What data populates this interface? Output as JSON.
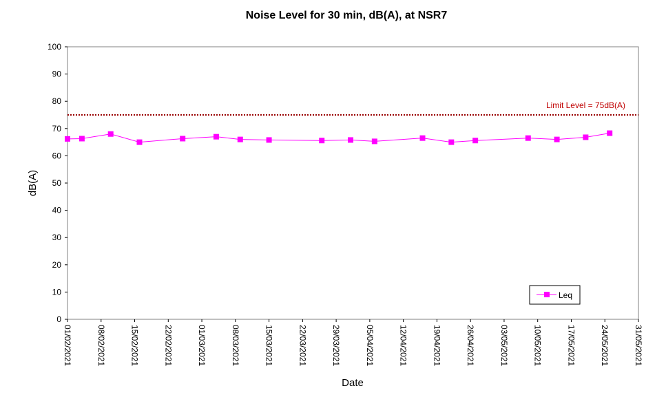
{
  "chart_data": {
    "type": "line",
    "title": "Noise Level for 30 min, dB(A), at NSR7",
    "xlabel": "Date",
    "ylabel": "dB(A)",
    "ylim": [
      0,
      100
    ],
    "yticks": [
      0,
      10,
      20,
      30,
      40,
      50,
      60,
      70,
      80,
      90,
      100
    ],
    "xlim": [
      "01/02/2021",
      "31/05/2021"
    ],
    "xticks": [
      "01/02/2021",
      "08/02/2021",
      "15/02/2021",
      "22/02/2021",
      "01/03/2021",
      "08/03/2021",
      "15/03/2021",
      "22/03/2021",
      "29/03/2021",
      "05/04/2021",
      "12/04/2021",
      "19/04/2021",
      "26/04/2021",
      "03/05/2021",
      "10/05/2021",
      "17/05/2021",
      "24/05/2021",
      "31/05/2021"
    ],
    "grid": false,
    "legend_position": "bottom-right",
    "series": [
      {
        "name": "Leq",
        "color": "#ff00ff",
        "marker": "square",
        "x": [
          "01/02/2021",
          "04/02/2021",
          "10/02/2021",
          "16/02/2021",
          "25/02/2021",
          "04/03/2021",
          "09/03/2021",
          "15/03/2021",
          "26/03/2021",
          "01/04/2021",
          "06/04/2021",
          "16/04/2021",
          "22/04/2021",
          "27/04/2021",
          "08/05/2021",
          "14/05/2021",
          "20/05/2021",
          "25/05/2021"
        ],
        "y": [
          66.2,
          66.3,
          68.0,
          65.0,
          66.3,
          67.0,
          66.0,
          65.8,
          65.6,
          65.8,
          65.3,
          66.5,
          65.0,
          65.6,
          66.5,
          66.0,
          66.8,
          68.3
        ]
      }
    ],
    "limit_line": {
      "value": 75,
      "label": "Limit Level  = 75dB(A)",
      "color": "#990000"
    }
  }
}
